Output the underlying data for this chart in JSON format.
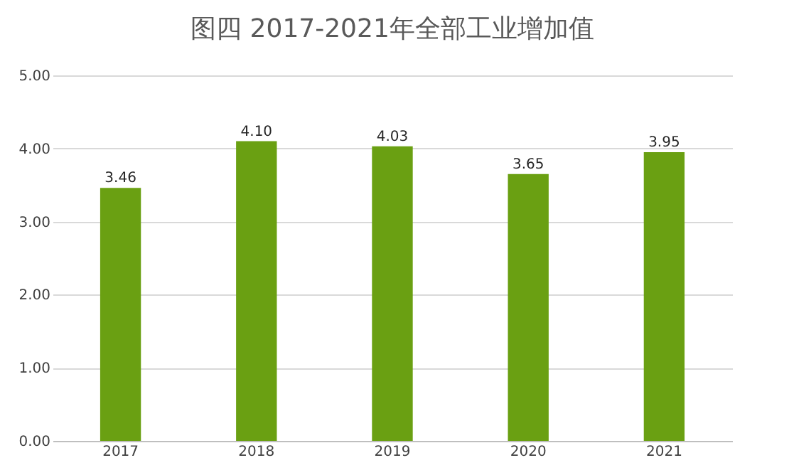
{
  "chart_data": {
    "type": "bar",
    "title": "图四 2017-2021年全部工业增加值",
    "categories": [
      "2017",
      "2018",
      "2019",
      "2020",
      "2021"
    ],
    "values": [
      3.46,
      4.1,
      4.03,
      3.65,
      3.95
    ],
    "color": "#6aa012",
    "ylim": [
      0,
      5
    ],
    "yticks": [
      {
        "value": 0,
        "label": "0.00"
      },
      {
        "value": 1,
        "label": "1.00"
      },
      {
        "value": 2,
        "label": "2.00"
      },
      {
        "value": 3,
        "label": "3.00"
      },
      {
        "value": 4,
        "label": "4.00"
      },
      {
        "value": 5,
        "label": "5.00"
      }
    ],
    "grid": "y",
    "value_labels": [
      "3.46",
      "4.10",
      "4.03",
      "3.65",
      "3.95"
    ]
  }
}
